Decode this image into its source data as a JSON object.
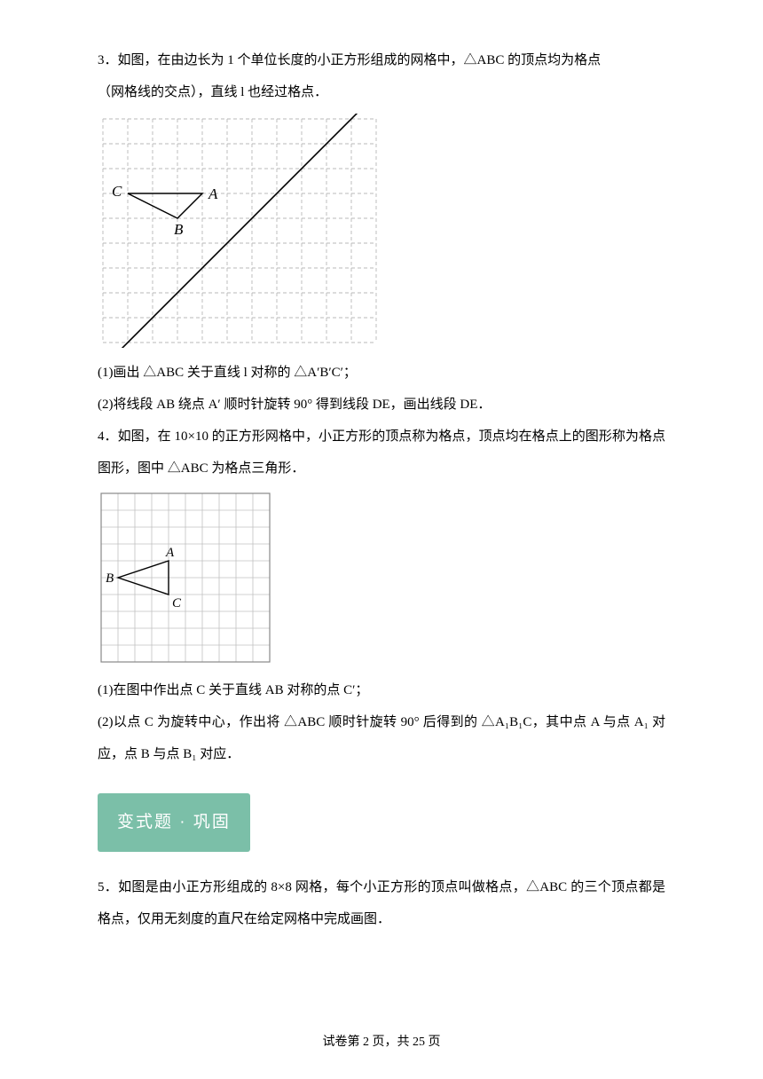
{
  "q3": {
    "stem1": "3．如图，在由边长为 1 个单位长度的小正方形组成的网格中，△ABC 的顶点均为格点",
    "stem2": "（网格线的交点），直线 l 也经过格点．",
    "part1": "(1)画出 △ABC 关于直线 l 对称的 △A′B′C′；",
    "part2": "(2)将线段 AB 绕点 A′ 顺时针旋转 90° 得到线段 DE，画出线段 DE．",
    "figure": {
      "cols": 11,
      "rows": 9,
      "cell": 28,
      "stroke": "#b8b8b8",
      "labels": {
        "l": "l",
        "A": "A",
        "B": "B",
        "C": "C"
      },
      "A": [
        4,
        3
      ],
      "B": [
        3,
        4
      ],
      "C": [
        1,
        3
      ],
      "line_from": [
        1,
        9
      ],
      "line_to": [
        10,
        0
      ]
    }
  },
  "q4": {
    "stem1": "4．如图，在 10×10 的正方形网格中，小正方形的顶点称为格点，顶点均在格点上的图形称为格点图形，图中 △ABC 为格点三角形．",
    "part1": "(1)在图中作出点 C 关于直线 AB 对称的点 C′；",
    "part2": "(2)以点 C 为旋转中心，作出将 △ABC 顺时针旋转 90° 后得到的 △A₁B₁C，其中点 A 与点 A₁ 对应，点 B 与点 B₁ 对应．",
    "figure": {
      "cols": 10,
      "rows": 10,
      "cell": 19,
      "stroke": "#c0c0c0",
      "labels": {
        "A": "A",
        "B": "B",
        "C": "C"
      },
      "A": [
        4,
        4
      ],
      "B": [
        1,
        5
      ],
      "C": [
        4,
        6
      ]
    }
  },
  "badge_label": "变式题 · 巩固",
  "q5": {
    "stem1": "5．如图是由小正方形组成的 8×8 网格，每个小正方形的顶点叫做格点，△ABC 的三个顶点都是格点，仅用无刻度的直尺在给定网格中完成画图．"
  },
  "footer": {
    "text": "试卷第 2 页，共 25 页"
  }
}
